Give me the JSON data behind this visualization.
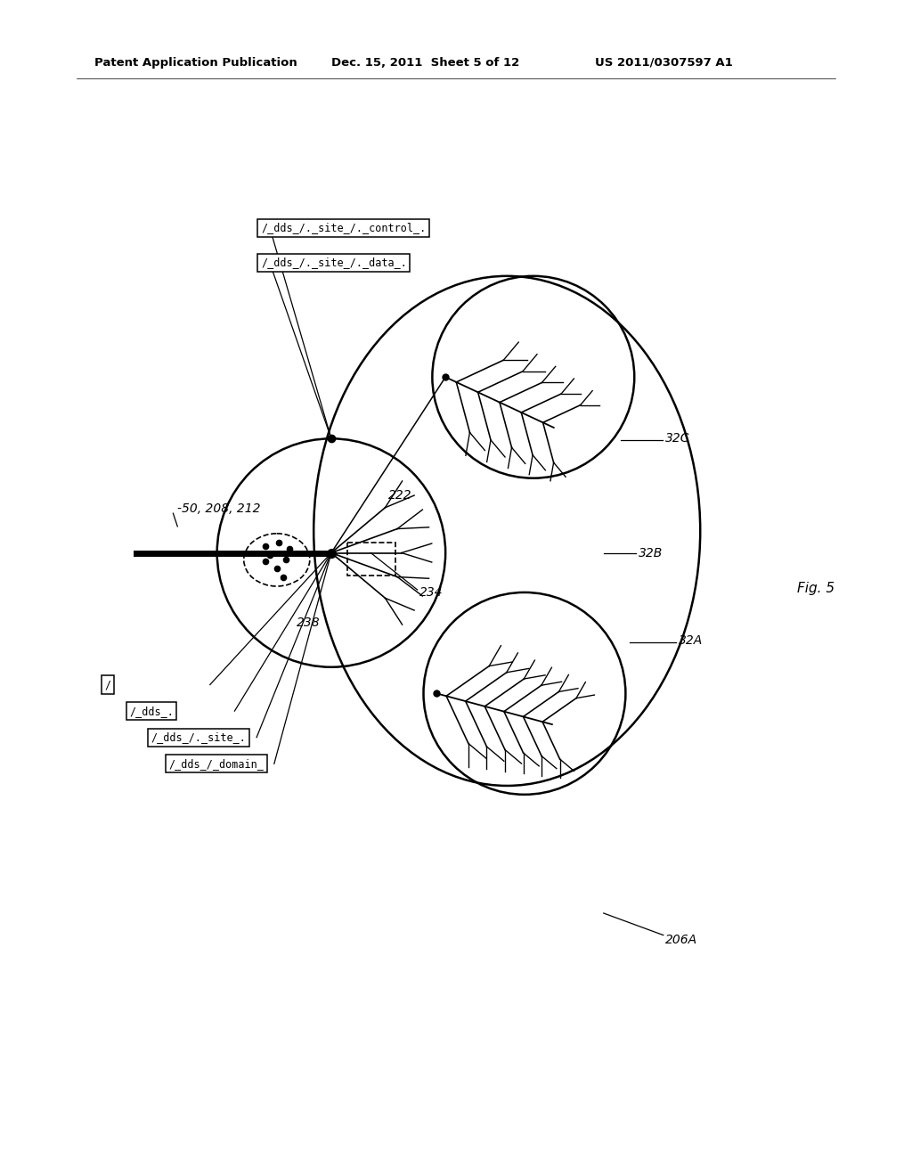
{
  "background_color": "#ffffff",
  "header_left": "Patent Application Publication",
  "header_mid": "Dec. 15, 2011  Sheet 5 of 12",
  "header_right": "US 2011/0307597 A1",
  "fig_label": "Fig. 5",
  "label_50": "-50, 208, 212",
  "label_222": "222",
  "label_238": "238",
  "label_234": "234",
  "label_32A": "32A",
  "label_32B": "32B",
  "label_32C": "32C",
  "label_206A": "206A",
  "box_top1": "/_dds_/._site_/._control_.",
  "box_top2": "/_dds_/._site_/._data_.",
  "box_left1": "/",
  "box_left2": "/_dds_.",
  "box_left3": "/_dds_/._site_.",
  "box_left4": "/_dds_/_domain_"
}
